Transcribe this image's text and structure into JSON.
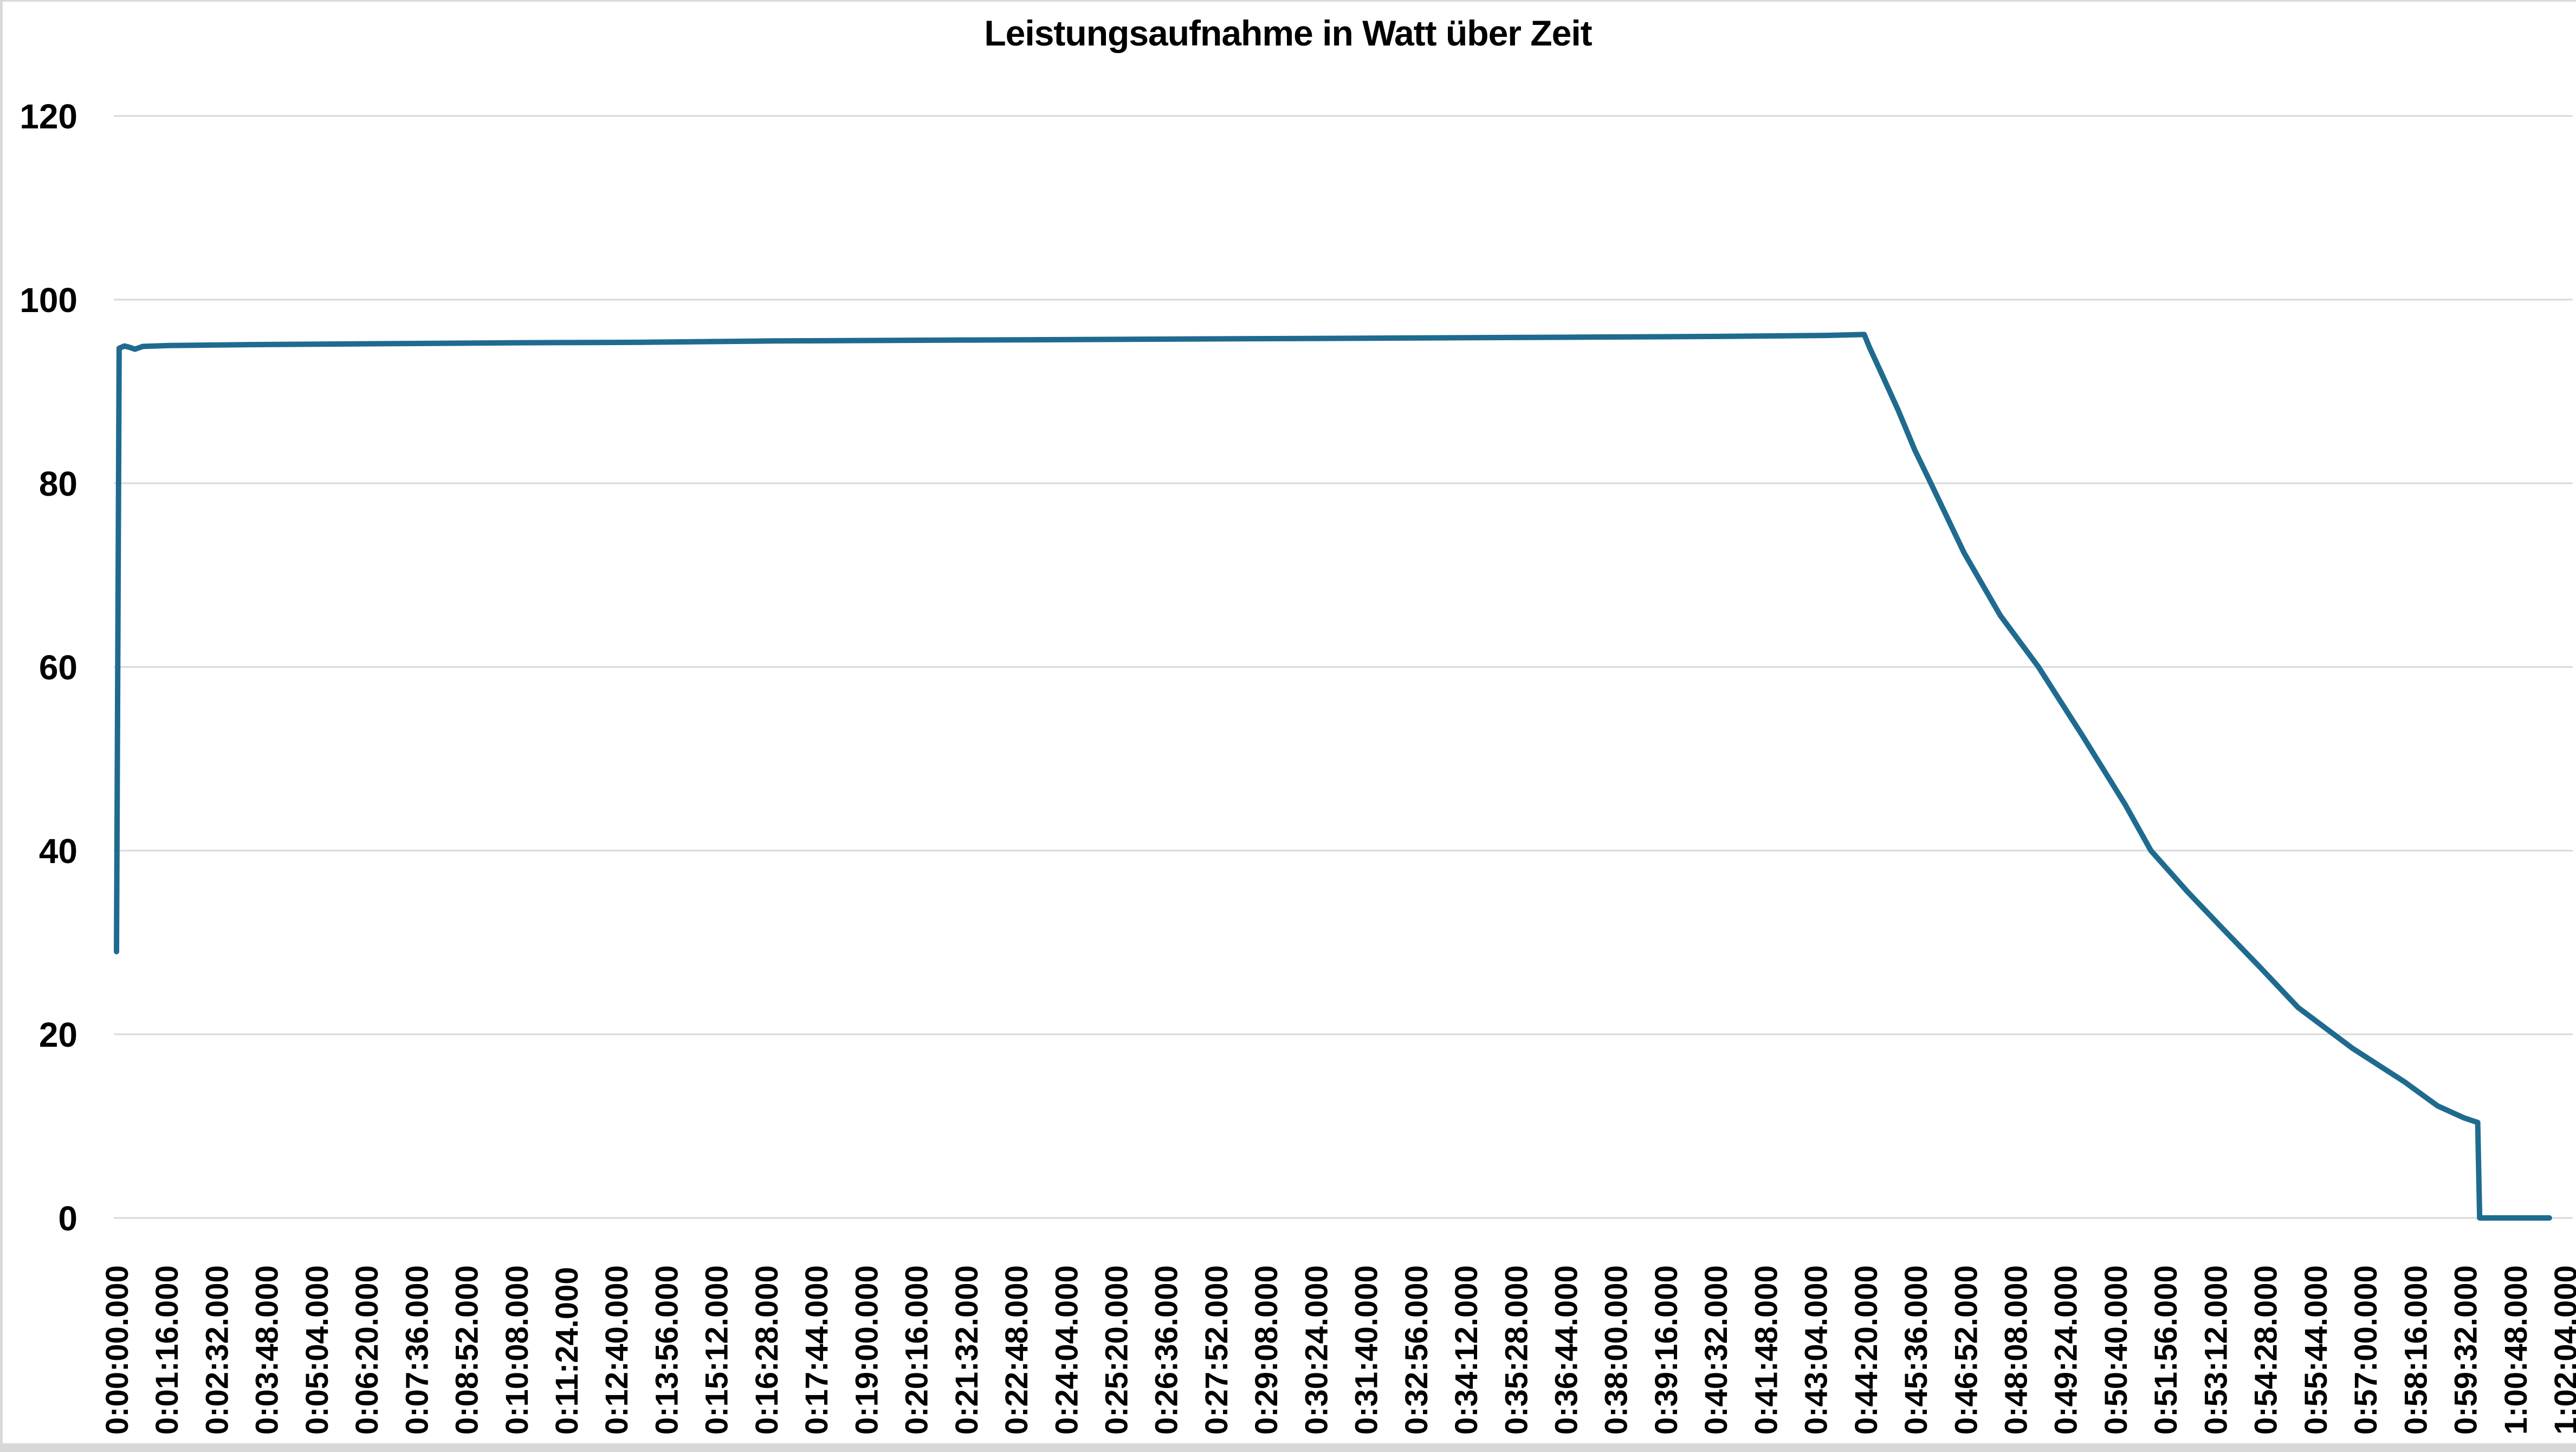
{
  "window": {
    "background": "#ffffff",
    "border_color": "#d9d9d9",
    "bottom_bar_color": "#d8d8d8"
  },
  "chart_data": {
    "type": "line",
    "title": "Leistungsaufnahme in Watt über Zeit",
    "xlabel": "",
    "ylabel": "",
    "unit": "Watt",
    "ylim": [
      0,
      120
    ],
    "y_ticks": [
      0,
      20,
      40,
      60,
      80,
      100,
      120
    ],
    "grid": "horizontal",
    "gridline_color": "#d9d9d9",
    "legend": "none",
    "x_tick_interval_seconds": 76,
    "x_tick_labels": [
      "0:00:00.000",
      "0:01:16.000",
      "0:02:32.000",
      "0:03:48.000",
      "0:05:04.000",
      "0:06:20.000",
      "0:07:36.000",
      "0:08:52.000",
      "0:10:08.000",
      "0:11:24.000",
      "0:12:40.000",
      "0:13:56.000",
      "0:15:12.000",
      "0:16:28.000",
      "0:17:44.000",
      "0:19:00.000",
      "0:20:16.000",
      "0:21:32.000",
      "0:22:48.000",
      "0:24:04.000",
      "0:25:20.000",
      "0:26:36.000",
      "0:27:52.000",
      "0:29:08.000",
      "0:30:24.000",
      "0:31:40.000",
      "0:32:56.000",
      "0:34:12.000",
      "0:35:28.000",
      "0:36:44.000",
      "0:38:00.000",
      "0:39:16.000",
      "0:40:32.000",
      "0:41:48.000",
      "0:43:04.000",
      "0:44:20.000",
      "0:45:36.000",
      "0:46:52.000",
      "0:48:08.000",
      "0:49:24.000",
      "0:50:40.000",
      "0:51:56.000",
      "0:53:12.000",
      "0:54:28.000",
      "0:55:44.000",
      "0:57:00.000",
      "0:58:16.000",
      "0:59:32.000",
      "1:00:48.000",
      "1:02:04.000"
    ],
    "series": [
      {
        "name": "Leistungsaufnahme",
        "color": "#1f6b8f",
        "stroke_width": 10,
        "points_t_seconds_watts": [
          [
            0,
            29.0
          ],
          [
            4,
            94.7
          ],
          [
            12,
            94.95
          ],
          [
            20,
            94.8
          ],
          [
            28,
            94.6
          ],
          [
            40,
            94.9
          ],
          [
            80,
            95.0
          ],
          [
            200,
            95.1
          ],
          [
            400,
            95.2
          ],
          [
            600,
            95.3
          ],
          [
            800,
            95.35
          ],
          [
            1000,
            95.5
          ],
          [
            1300,
            95.6
          ],
          [
            1600,
            95.7
          ],
          [
            1900,
            95.8
          ],
          [
            2200,
            95.9
          ],
          [
            2450,
            96.0
          ],
          [
            2600,
            96.1
          ],
          [
            2658,
            96.2
          ],
          [
            2666,
            94.8
          ],
          [
            2684,
            92.0
          ],
          [
            2710,
            87.9
          ],
          [
            2735,
            83.6
          ],
          [
            2760,
            79.9
          ],
          [
            2810,
            72.4
          ],
          [
            2865,
            65.6
          ],
          [
            2923,
            60.0
          ],
          [
            2990,
            52.5
          ],
          [
            3055,
            45.0
          ],
          [
            3094,
            40.0
          ],
          [
            3150,
            35.5
          ],
          [
            3202,
            31.6
          ],
          [
            3260,
            27.3
          ],
          [
            3318,
            22.9
          ],
          [
            3400,
            18.5
          ],
          [
            3480,
            14.8
          ],
          [
            3530,
            12.2
          ],
          [
            3570,
            10.9
          ],
          [
            3591,
            10.4
          ],
          [
            3594,
            0.0
          ],
          [
            3700,
            0.0
          ]
        ]
      }
    ]
  }
}
